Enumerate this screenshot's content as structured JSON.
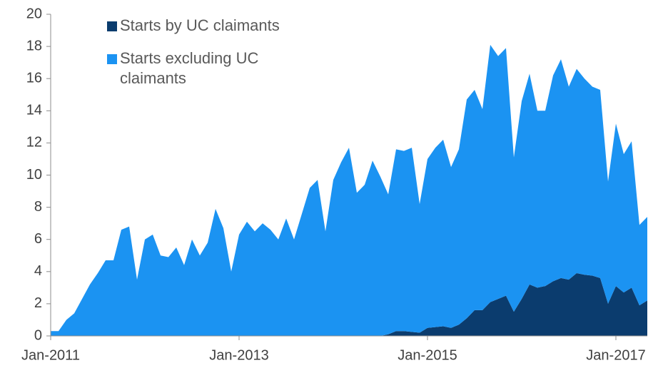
{
  "chart_data": {
    "type": "stacked_area",
    "categories": [
      "Jan-2011",
      null,
      null,
      null,
      null,
      null,
      null,
      null,
      null,
      null,
      null,
      null,
      null,
      null,
      null,
      null,
      null,
      null,
      null,
      null,
      null,
      null,
      null,
      null,
      "Jan-2013",
      null,
      null,
      null,
      null,
      null,
      null,
      null,
      null,
      null,
      null,
      null,
      null,
      null,
      null,
      null,
      null,
      null,
      null,
      null,
      null,
      null,
      null,
      null,
      "Jan-2015",
      null,
      null,
      null,
      null,
      null,
      null,
      null,
      null,
      null,
      null,
      null,
      null,
      null,
      null,
      null,
      null,
      null,
      null,
      null,
      null,
      null,
      null,
      null,
      "Jan-2017",
      null,
      null,
      null,
      null
    ],
    "series": [
      {
        "name": "Starts by UC claimants",
        "color": "#0b3c6e",
        "values": [
          0,
          0,
          0,
          0,
          0,
          0,
          0,
          0,
          0,
          0,
          0,
          0,
          0,
          0,
          0,
          0,
          0,
          0,
          0,
          0,
          0,
          0,
          0,
          0,
          0,
          0,
          0,
          0,
          0,
          0,
          0,
          0,
          0,
          0,
          0,
          0,
          0,
          0,
          0,
          0,
          0,
          0,
          0,
          0.1,
          0.3,
          0.3,
          0.25,
          0.2,
          0.5,
          0.55,
          0.6,
          0.5,
          0.7,
          1.1,
          1.6,
          1.6,
          2.1,
          2.3,
          2.5,
          1.5,
          2.3,
          3.2,
          3.0,
          3.1,
          3.4,
          3.6,
          3.5,
          3.9,
          3.8,
          3.75,
          3.6,
          2.0,
          3.1,
          2.7,
          3.0,
          1.9,
          2.2
        ]
      },
      {
        "name": "Starts excluding UC claimants",
        "color": "#1b93f2",
        "values": [
          0.3,
          0.3,
          1.0,
          1.4,
          2.3,
          3.2,
          3.9,
          4.7,
          4.7,
          6.6,
          6.8,
          3.5,
          6.0,
          6.3,
          5.0,
          4.9,
          5.5,
          4.4,
          6.0,
          5.0,
          5.8,
          7.9,
          6.7,
          4.0,
          6.3,
          7.1,
          6.5,
          7.0,
          6.6,
          6.0,
          7.3,
          6.0,
          7.6,
          9.2,
          9.7,
          6.5,
          9.7,
          10.8,
          11.7,
          8.9,
          9.4,
          10.9,
          9.9,
          8.7,
          11.3,
          11.2,
          11.45,
          8.0,
          10.5,
          11.15,
          11.6,
          10.0,
          10.9,
          13.6,
          13.7,
          12.5,
          16.0,
          15.1,
          15.4,
          9.6,
          12.3,
          13.1,
          11.0,
          10.9,
          12.8,
          13.6,
          12.0,
          12.7,
          12.2,
          11.75,
          11.7,
          7.6,
          10.1,
          8.6,
          9.1,
          5.0,
          5.2
        ]
      }
    ],
    "ylim": [
      0,
      20
    ],
    "yticks": [
      0,
      2,
      4,
      6,
      8,
      10,
      12,
      14,
      16,
      18,
      20
    ],
    "grid": false
  }
}
